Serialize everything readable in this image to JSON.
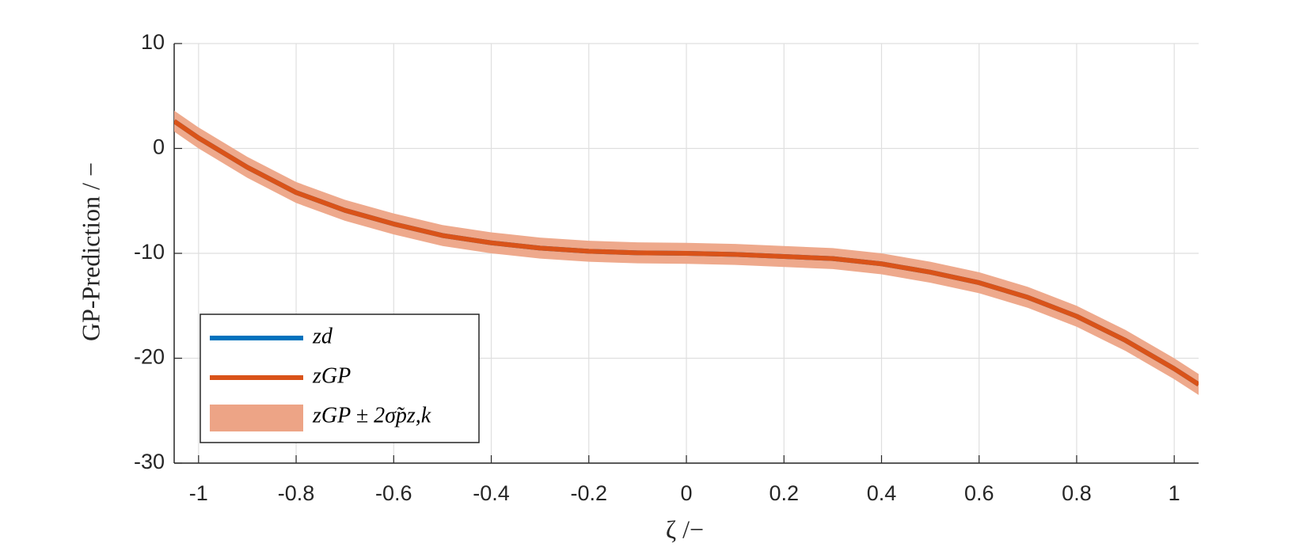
{
  "chart_data": {
    "type": "line",
    "xlabel": "ζ /−",
    "ylabel": "GP-Prediction  /  −",
    "x": [
      -1.05,
      -1,
      -0.9,
      -0.8,
      -0.7,
      -0.6,
      -0.5,
      -0.4,
      -0.3,
      -0.2,
      -0.1,
      0,
      0.1,
      0.2,
      0.3,
      0.4,
      0.5,
      0.6,
      0.7,
      0.8,
      0.9,
      1,
      1.05
    ],
    "series": [
      {
        "name": "zd",
        "color": "#0072bd",
        "values": [
          2.6,
          1.0,
          -1.8,
          -4.2,
          -5.9,
          -7.2,
          -8.3,
          -9.0,
          -9.5,
          -9.8,
          -9.95,
          -10.0,
          -10.1,
          -10.3,
          -10.5,
          -11.0,
          -11.8,
          -12.8,
          -14.2,
          -16.0,
          -18.3,
          -21.0,
          -22.5
        ]
      },
      {
        "name": "zGP",
        "color": "#d95319",
        "values": [
          2.6,
          1.0,
          -1.8,
          -4.2,
          -5.9,
          -7.2,
          -8.3,
          -9.0,
          -9.5,
          -9.8,
          -9.95,
          -10.0,
          -10.1,
          -10.3,
          -10.5,
          -11.0,
          -11.8,
          -12.8,
          -14.2,
          -16.0,
          -18.3,
          -21.0,
          -22.5
        ]
      },
      {
        "name": "zGP ± 2σ̃pz,k",
        "color": "#eda486",
        "upper": [
          3.6,
          2.0,
          -0.8,
          -3.2,
          -4.9,
          -6.2,
          -7.3,
          -8.0,
          -8.5,
          -8.8,
          -8.95,
          -9.0,
          -9.1,
          -9.3,
          -9.5,
          -10.0,
          -10.8,
          -11.8,
          -13.2,
          -15.0,
          -17.3,
          -20.0,
          -21.5
        ],
        "lower": [
          1.6,
          0.0,
          -2.8,
          -5.2,
          -6.9,
          -8.2,
          -9.3,
          -10.0,
          -10.5,
          -10.8,
          -10.95,
          -11.0,
          -11.1,
          -11.3,
          -11.5,
          -12.0,
          -12.8,
          -13.8,
          -15.2,
          -17.0,
          -19.3,
          -22.0,
          -23.5
        ]
      }
    ],
    "xlim": [
      -1.05,
      1.05
    ],
    "xticks": [
      -1,
      -0.8,
      -0.6,
      -0.4,
      -0.2,
      0,
      0.2,
      0.4,
      0.6,
      0.8,
      1
    ],
    "ylim": [
      -30,
      10
    ],
    "yticks": [
      -30,
      -20,
      -10,
      0,
      10
    ],
    "grid": true,
    "legend": "lower left"
  }
}
